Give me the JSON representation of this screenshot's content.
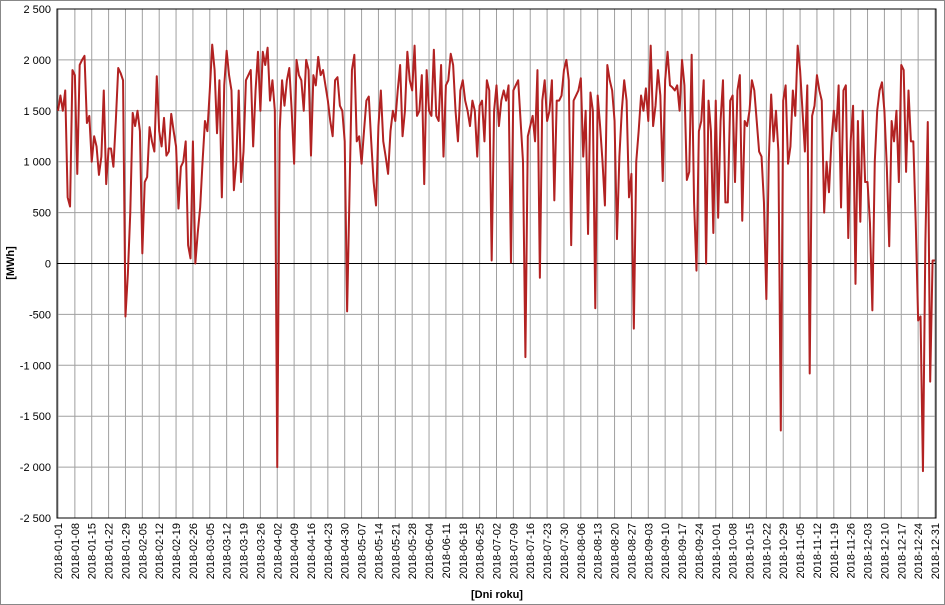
{
  "chart_data": {
    "type": "line",
    "y_label": "[MWh]",
    "x_label": "[Dni roku]",
    "color": "#b22222",
    "grid": true,
    "categories": [
      "2018-01-01",
      null,
      null,
      null,
      null,
      null,
      null,
      "2018-01-08",
      null,
      null,
      null,
      null,
      null,
      null,
      "2018-01-15",
      null,
      null,
      null,
      null,
      null,
      null,
      "2018-01-22",
      null,
      null,
      null,
      null,
      null,
      null,
      "2018-01-29",
      null,
      null,
      null,
      null,
      null,
      null,
      "2018-02-05",
      null,
      null,
      null,
      null,
      null,
      null,
      "2018-02-12",
      null,
      null,
      null,
      null,
      null,
      null,
      "2018-02-19",
      null,
      null,
      null,
      null,
      null,
      null,
      "2018-02-26",
      null,
      null,
      null,
      null,
      null,
      null,
      "2018-03-05",
      null,
      null,
      null,
      null,
      null,
      null,
      "2018-03-12",
      null,
      null,
      null,
      null,
      null,
      null,
      "2018-03-19",
      null,
      null,
      null,
      null,
      null,
      null,
      "2018-03-26",
      null,
      null,
      null,
      null,
      null,
      null,
      "2018-04-02",
      null,
      null,
      null,
      null,
      null,
      null,
      "2018-04-09",
      null,
      null,
      null,
      null,
      null,
      null,
      "2018-04-16",
      null,
      null,
      null,
      null,
      null,
      null,
      "2018-04-23",
      null,
      null,
      null,
      null,
      null,
      null,
      "2018-04-30",
      null,
      null,
      null,
      null,
      null,
      null,
      "2018-05-07",
      null,
      null,
      null,
      null,
      null,
      null,
      "2018-05-14",
      null,
      null,
      null,
      null,
      null,
      null,
      "2018-05-21",
      null,
      null,
      null,
      null,
      null,
      null,
      "2018-05-28",
      null,
      null,
      null,
      null,
      null,
      null,
      "2018-06-04",
      null,
      null,
      null,
      null,
      null,
      null,
      "2018-06-11",
      null,
      null,
      null,
      null,
      null,
      null,
      "2018-06-18",
      null,
      null,
      null,
      null,
      null,
      null,
      "2018-06-25",
      null,
      null,
      null,
      null,
      null,
      null,
      "2018-07-02",
      null,
      null,
      null,
      null,
      null,
      null,
      "2018-07-09",
      null,
      null,
      null,
      null,
      null,
      null,
      "2018-07-16",
      null,
      null,
      null,
      null,
      null,
      null,
      "2018-07-23",
      null,
      null,
      null,
      null,
      null,
      null,
      "2018-07-30",
      null,
      null,
      null,
      null,
      null,
      null,
      "2018-08-06",
      null,
      null,
      null,
      null,
      null,
      null,
      "2018-08-13",
      null,
      null,
      null,
      null,
      null,
      null,
      "2018-08-20",
      null,
      null,
      null,
      null,
      null,
      null,
      "2018-08-27",
      null,
      null,
      null,
      null,
      null,
      null,
      "2018-09-03",
      null,
      null,
      null,
      null,
      null,
      null,
      "2018-09-10",
      null,
      null,
      null,
      null,
      null,
      null,
      "2018-09-17",
      null,
      null,
      null,
      null,
      null,
      null,
      "2018-09-24",
      null,
      null,
      null,
      null,
      null,
      null,
      "2018-10-01",
      null,
      null,
      null,
      null,
      null,
      null,
      "2018-10-08",
      null,
      null,
      null,
      null,
      null,
      null,
      "2018-10-15",
      null,
      null,
      null,
      null,
      null,
      null,
      "2018-10-22",
      null,
      null,
      null,
      null,
      null,
      null,
      "2018-10-29",
      null,
      null,
      null,
      null,
      null,
      null,
      "2018-11-05",
      null,
      null,
      null,
      null,
      null,
      null,
      "2018-11-12",
      null,
      null,
      null,
      null,
      null,
      null,
      "2018-11-19",
      null,
      null,
      null,
      null,
      null,
      null,
      "2018-11-26",
      null,
      null,
      null,
      null,
      null,
      null,
      "2018-12-03",
      null,
      null,
      null,
      null,
      null,
      null,
      "2018-12-10",
      null,
      null,
      null,
      null,
      null,
      null,
      "2018-12-17",
      null,
      null,
      null,
      null,
      null,
      null,
      "2018-12-24",
      null,
      null,
      null,
      null,
      null,
      null,
      "2018-12-31"
    ],
    "values": [
      1500,
      1650,
      1500,
      1700,
      650,
      560,
      1900,
      1850,
      880,
      1950,
      2000,
      2040,
      1380,
      1450,
      1000,
      1250,
      1150,
      870,
      1050,
      1700,
      780,
      1130,
      1130,
      950,
      1400,
      1920,
      1870,
      1800,
      -520,
      -100,
      500,
      1480,
      1350,
      1500,
      1300,
      100,
      800,
      850,
      1340,
      1200,
      1100,
      1840,
      1300,
      1150,
      1430,
      1060,
      1100,
      1470,
      1300,
      1150,
      540,
      950,
      1000,
      1200,
      180,
      50,
      1200,
      0,
      300,
      550,
      1000,
      1400,
      1300,
      1700,
      2150,
      1900,
      1280,
      1800,
      650,
      1750,
      2090,
      1850,
      1700,
      720,
      1000,
      1700,
      800,
      1100,
      1800,
      1850,
      1900,
      1150,
      1700,
      2080,
      1500,
      2080,
      1950,
      2120,
      1600,
      1800,
      1500,
      -2000,
      1300,
      1800,
      1550,
      1800,
      1920,
      1500,
      980,
      2000,
      1850,
      1800,
      1500,
      2000,
      1900,
      1060,
      1850,
      1750,
      2030,
      1850,
      1900,
      1750,
      1600,
      1400,
      1250,
      1800,
      1830,
      1550,
      1500,
      1200,
      -470,
      700,
      1900,
      2050,
      1200,
      1250,
      980,
      1300,
      1600,
      1640,
      1200,
      800,
      570,
      1350,
      1700,
      1200,
      1050,
      880,
      1300,
      1500,
      1400,
      1700,
      1950,
      1250,
      1500,
      2080,
      1800,
      1700,
      2140,
      1450,
      1500,
      1850,
      780,
      1900,
      1500,
      1450,
      2100,
      1450,
      1400,
      1950,
      1050,
      1750,
      1800,
      2060,
      1950,
      1500,
      1200,
      1700,
      1800,
      1600,
      1500,
      1350,
      1600,
      1500,
      1050,
      1550,
      1600,
      1200,
      1800,
      1700,
      30,
      1500,
      1750,
      1350,
      1600,
      1700,
      1600,
      1750,
      10,
      1700,
      1750,
      1800,
      1400,
      1000,
      -920,
      1250,
      1350,
      1450,
      1200,
      1900,
      -140,
      1600,
      1800,
      1400,
      1500,
      1800,
      620,
      1600,
      1600,
      1650,
      1900,
      2000,
      1800,
      180,
      1600,
      1650,
      1700,
      1820,
      1050,
      1500,
      290,
      1680,
      1500,
      -440,
      1650,
      1350,
      1000,
      570,
      1950,
      1800,
      1700,
      1400,
      240,
      1050,
      1500,
      1800,
      1600,
      650,
      880,
      -640,
      1000,
      1300,
      1650,
      1500,
      1720,
      1400,
      2140,
      1350,
      1550,
      1900,
      1650,
      810,
      1800,
      2080,
      1750,
      1730,
      1700,
      1750,
      1500,
      2000,
      1750,
      820,
      900,
      2050,
      600,
      -70,
      1300,
      1400,
      1800,
      0,
      1600,
      1300,
      300,
      1600,
      450,
      1400,
      1800,
      600,
      600,
      1600,
      1650,
      800,
      1700,
      1850,
      420,
      1400,
      1350,
      1500,
      1800,
      1700,
      1400,
      1100,
      1050,
      600,
      -350,
      1000,
      1660,
      1200,
      1500,
      1100,
      -1640,
      1600,
      1750,
      980,
      1150,
      1700,
      1450,
      2140,
      1900,
      1500,
      1100,
      1750,
      -1080,
      1450,
      1550,
      1850,
      1700,
      1600,
      500,
      1000,
      700,
      1200,
      1500,
      1300,
      1750,
      550,
      1700,
      1750,
      250,
      1200,
      1550,
      -200,
      1400,
      410,
      1500,
      800,
      800,
      400,
      -460,
      1000,
      1500,
      1700,
      1780,
      1500,
      950,
      170,
      1400,
      1200,
      1500,
      800,
      1950,
      1900,
      900,
      1700,
      1200,
      1200,
      400,
      -560,
      -520,
      -2040,
      200,
      1390,
      -1160,
      30,
      30
    ],
    "ylim": [
      -2500,
      2500
    ],
    "yticks": [
      {
        "value": -2500,
        "label": "-2 500"
      },
      {
        "value": -2000,
        "label": "-2 000"
      },
      {
        "value": -1500,
        "label": "-1 500"
      },
      {
        "value": -1000,
        "label": "-1 000"
      },
      -500,
      0,
      500,
      {
        "value": 1000,
        "label": "1 000"
      },
      {
        "value": 1500,
        "label": "1 500"
      },
      {
        "value": 2000,
        "label": "2 000"
      },
      {
        "value": 2500,
        "label": "2 500"
      }
    ]
  }
}
